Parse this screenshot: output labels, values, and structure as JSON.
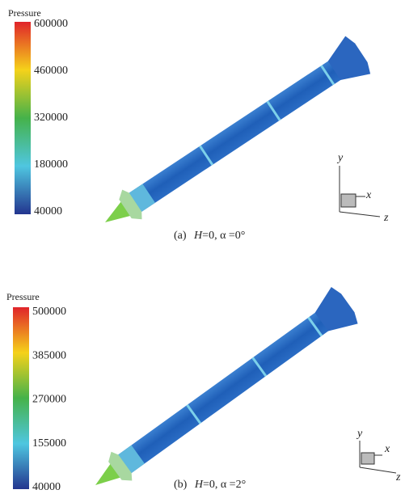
{
  "panels": [
    {
      "legend_title": "Pressure",
      "ticks": [
        600000,
        460000,
        320000,
        180000,
        40000
      ],
      "axes": {
        "y": "y",
        "x": "x",
        "z": "z"
      },
      "caption": {
        "label": "(a)",
        "var": "H",
        "rest": "=0, α =0°"
      }
    },
    {
      "legend_title": "Pressure",
      "ticks": [
        500000,
        385000,
        270000,
        155000,
        40000
      ],
      "axes": {
        "y": "y",
        "x": "x",
        "z": "z"
      },
      "caption": {
        "label": "(b)",
        "var": "H",
        "rest": "=0, α =2°"
      }
    }
  ]
}
